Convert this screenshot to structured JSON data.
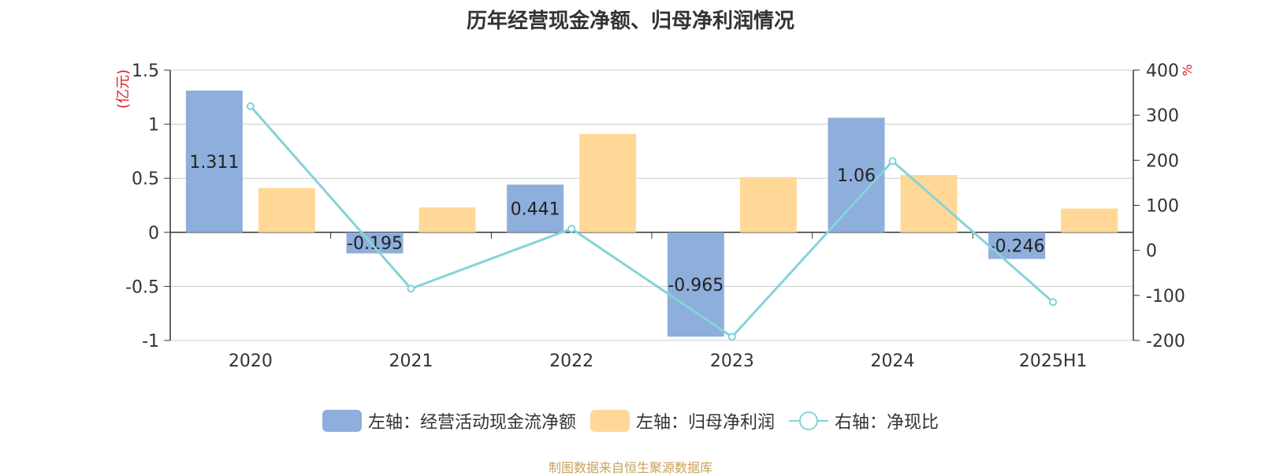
{
  "chart_data": {
    "type": "bar",
    "title": "历年经营现金净额、归母净利润情况",
    "categories": [
      "2020",
      "2021",
      "2022",
      "2023",
      "2024",
      "2025H1"
    ],
    "y_left": {
      "unit": "(亿元)",
      "range": [
        -1,
        1.5
      ],
      "ticks": [
        "1.5",
        "1",
        "0.5",
        "0",
        "-0.5",
        "-1"
      ]
    },
    "y_right": {
      "unit": "%",
      "range": [
        -200,
        400
      ],
      "ticks": [
        "400",
        "300",
        "200",
        "100",
        "0",
        "-100",
        "-200"
      ]
    },
    "series": [
      {
        "name": "左轴：经营活动现金流净额",
        "type": "bar",
        "axis": "left",
        "color": "#8eaedb",
        "values": [
          1.311,
          -0.195,
          0.441,
          -0.965,
          1.06,
          -0.246
        ],
        "labels": [
          "1.311",
          "-0.195",
          "0.441",
          "-0.965",
          "1.06",
          "-0.246"
        ]
      },
      {
        "name": "左轴：归母净利润",
        "type": "bar",
        "axis": "left",
        "color": "#ffd898",
        "values": [
          0.41,
          0.23,
          0.91,
          0.51,
          0.53,
          0.22
        ]
      },
      {
        "name": "右轴：净现比",
        "type": "line",
        "axis": "right",
        "color": "#85d3d8",
        "values": [
          320,
          -85,
          48,
          -192,
          198,
          -115
        ]
      }
    ],
    "grid": true,
    "legend_position": "bottom"
  },
  "source": "制图数据来自恒生聚源数据库"
}
